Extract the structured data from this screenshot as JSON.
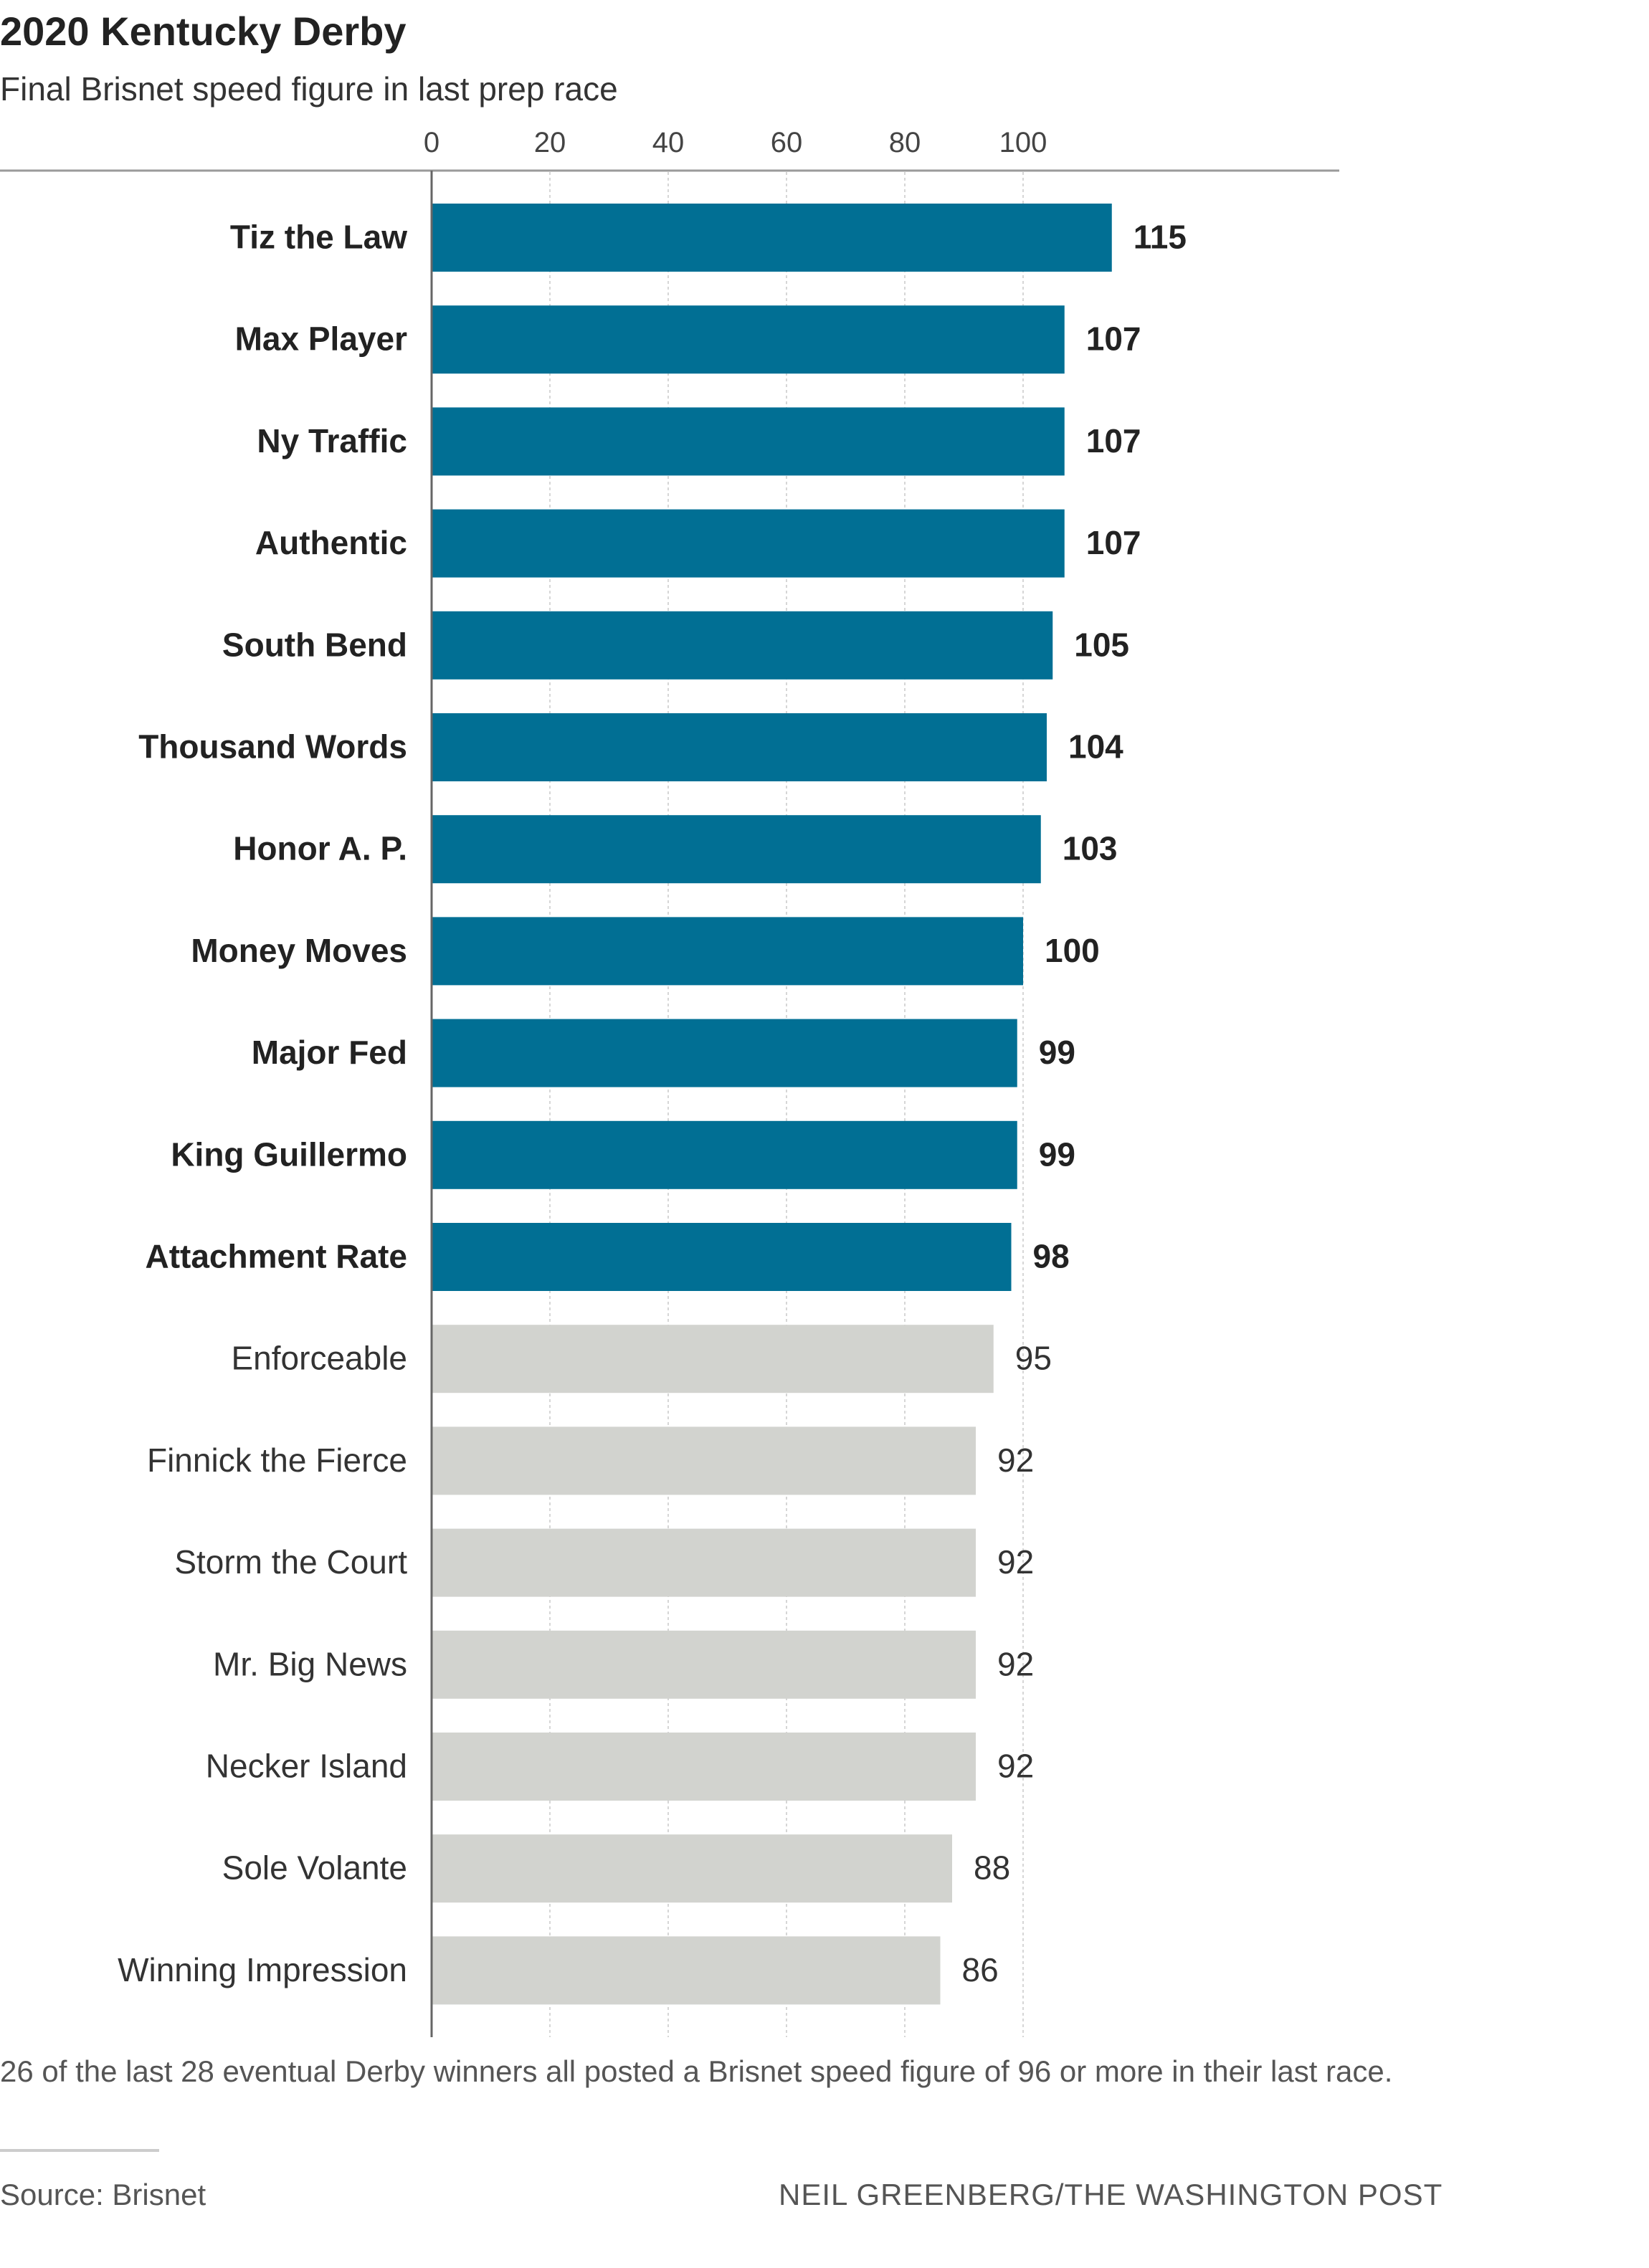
{
  "chart_data": {
    "type": "bar",
    "orientation": "horizontal",
    "title": "2020 Kentucky Derby",
    "subtitle": "Final Brisnet speed figure in last prep race",
    "xticks": [
      0,
      20,
      40,
      60,
      80,
      100
    ],
    "categories": [
      "Tiz the Law",
      "Max Player",
      "Ny Traffic",
      "Authentic",
      "South Bend",
      "Thousand Words",
      "Honor A. P.",
      "Money Moves",
      "Major Fed",
      "King Guillermo",
      "Attachment Rate",
      "Enforceable",
      "Finnick the Fierce",
      "Storm the Court",
      "Mr. Big News",
      "Necker Island",
      "Sole Volante",
      "Winning Impression"
    ],
    "values": [
      115,
      107,
      107,
      107,
      105,
      104,
      103,
      100,
      99,
      99,
      98,
      95,
      92,
      92,
      92,
      92,
      88,
      86
    ],
    "highlight_threshold": 96,
    "highlight_color": "#016f94",
    "base_color": "#d2d3cf",
    "grid": true,
    "note": "26 of the last 28 eventual Derby winners all posted a Brisnet speed figure of 96 or more in their last race."
  },
  "source": "Source: Brisnet",
  "credit": "NEIL GREENBERG/THE WASHINGTON POST"
}
